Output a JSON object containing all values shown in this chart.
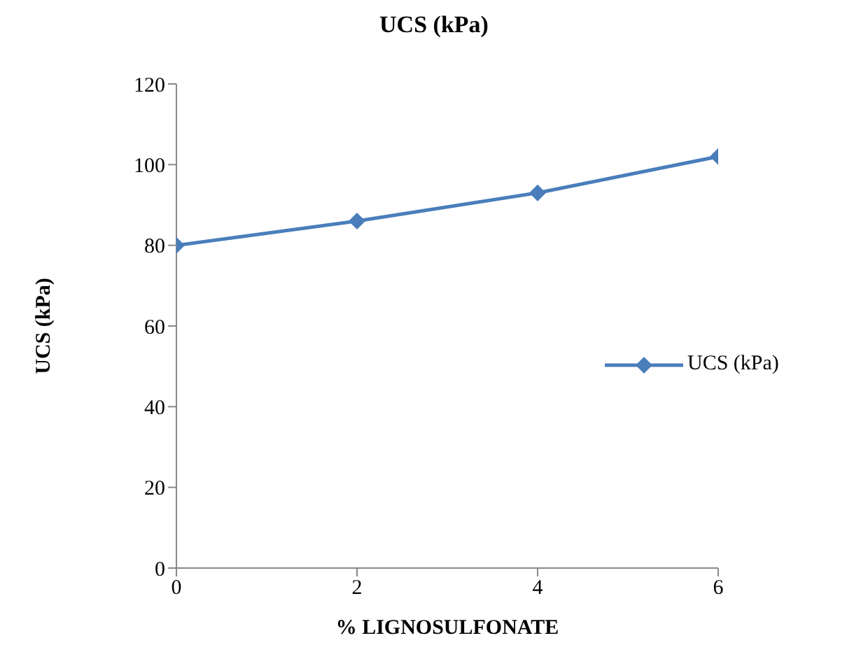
{
  "chart_data": {
    "type": "line",
    "title": "UCS (kPa)",
    "xlabel": "% LIGNOSULFONATE",
    "ylabel": "UCS (kPa)",
    "x": [
      0,
      2,
      4,
      6
    ],
    "series": [
      {
        "name": "UCS (kPa)",
        "color": "#4a7ebb",
        "values": [
          80,
          86,
          93,
          102
        ]
      }
    ],
    "xlim": [
      0,
      6
    ],
    "xticks": [
      0,
      2,
      4,
      6
    ],
    "ylim": [
      0,
      120
    ],
    "yticks": [
      0,
      20,
      40,
      60,
      80,
      100,
      120
    ],
    "grid": false,
    "legend": "right",
    "marker": "diamond",
    "line_style": "solid"
  }
}
